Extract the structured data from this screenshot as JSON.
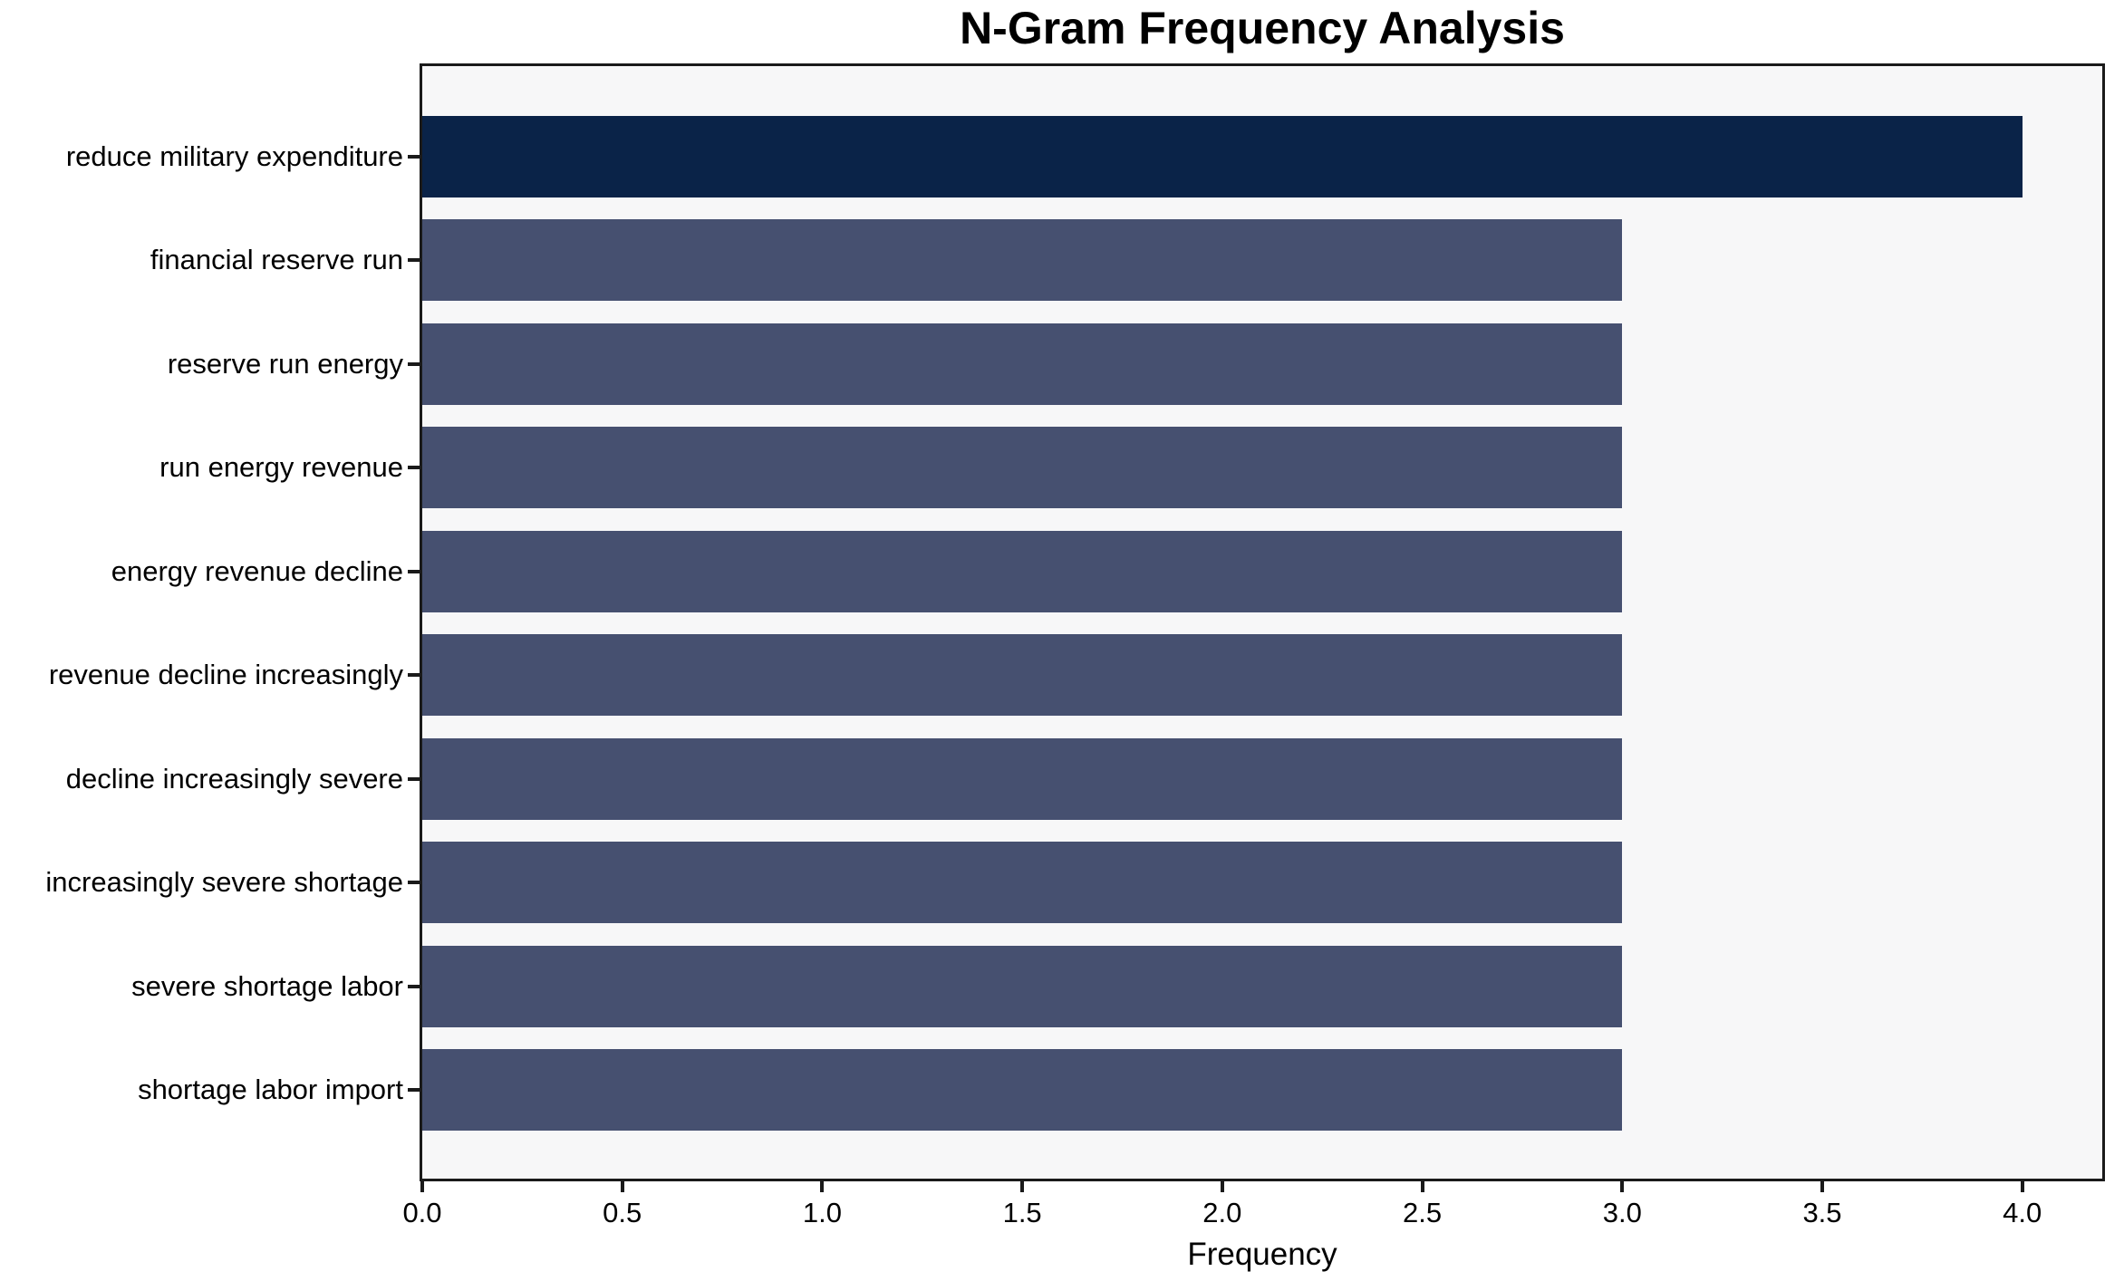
{
  "chart_data": {
    "type": "bar",
    "orientation": "horizontal",
    "title": "N-Gram Frequency Analysis",
    "xlabel": "Frequency",
    "ylabel": "",
    "categories": [
      "reduce military expenditure",
      "financial reserve run",
      "reserve run energy",
      "run energy revenue",
      "energy revenue decline",
      "revenue decline increasingly",
      "decline increasingly severe",
      "increasingly severe shortage",
      "severe shortage labor",
      "shortage labor import"
    ],
    "values": [
      4,
      3,
      3,
      3,
      3,
      3,
      3,
      3,
      3,
      3
    ],
    "bar_colors": [
      "#0a2348",
      "#465070",
      "#465070",
      "#465070",
      "#465070",
      "#465070",
      "#465070",
      "#465070",
      "#465070",
      "#465070"
    ],
    "xlim": [
      0,
      4.2
    ],
    "xticks": [
      0.0,
      0.5,
      1.0,
      1.5,
      2.0,
      2.5,
      3.0,
      3.5,
      4.0
    ],
    "xtick_decimals": 1,
    "grid": false,
    "legend": null,
    "colors": {
      "highlight_bar": "#0a2348",
      "base_bar": "#465070",
      "plot_background": "#f7f7f8",
      "figure_background": "#ffffff",
      "spine": "#1a1a1a",
      "text": "#000000"
    }
  }
}
